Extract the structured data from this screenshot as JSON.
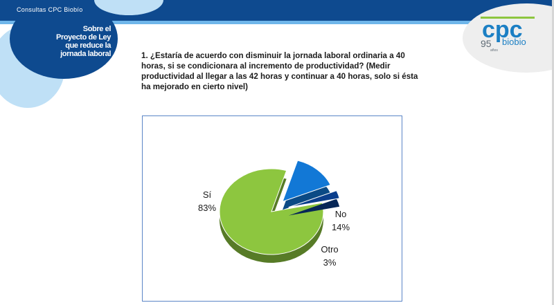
{
  "header": {
    "title": "Consultas CPC Biobío"
  },
  "topic": {
    "lines": [
      "Sobre el",
      "Proyecto de Ley",
      "que reduce la",
      "jornada laboral"
    ]
  },
  "question": {
    "text": "1. ¿Estaría de acuerdo con disminuir la jornada laboral ordinaria a 40 horas, si se condicionara al incremento de productividad? (Medir productividad al llegar a las 42 horas y  continuar a 40 horas, solo si ésta ha mejorado en cierto nivel)"
  },
  "logo": {
    "main": "cpc",
    "sub": "biobio",
    "years": "95",
    "years_label": "años"
  },
  "colors": {
    "brand_blue": "#0e4a8f",
    "light_blue": "#6fb6ea",
    "green": "#8dc63f",
    "blue": "#1278d6",
    "dark_blue": "#0b3f8c"
  },
  "chart_data": {
    "type": "pie",
    "title": "",
    "slices": [
      {
        "label": "Sí",
        "value": 83,
        "display": "83%",
        "color": "#8dc63f"
      },
      {
        "label": "No",
        "value": 14,
        "display": "14%",
        "color": "#1278d6"
      },
      {
        "label": "Otro",
        "value": 3,
        "display": "3%",
        "color": "#0b3f8c"
      }
    ]
  }
}
